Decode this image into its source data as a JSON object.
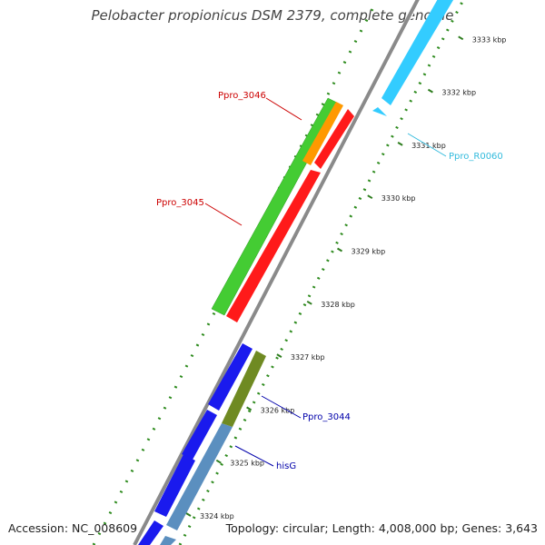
{
  "title": "Pelobacter propionicus DSM 2379, complete genome",
  "footer": {
    "accession": "Accession: NC_008609",
    "summary": "Topology: circular; Length: 4,008,000 bp; Genes: 3,643"
  },
  "colors": {
    "backbone": "#888888",
    "tick": "#2e7d1e",
    "tick_dot": "#1f8a1f",
    "red": "#ff1a1a",
    "green": "#44cc33",
    "orange": "#ff9900",
    "blue": "#1a1aee",
    "steel": "#5b8fbf",
    "olive": "#6f8a22",
    "cyan": "#33ccff",
    "label_red": "#cc0000",
    "label_blue": "#0000aa",
    "label_cyan": "#33bbdd"
  },
  "ticks": [
    {
      "label": "3324 kbp"
    },
    {
      "label": "3325 kbp"
    },
    {
      "label": "3326 kbp"
    },
    {
      "label": "3327 kbp"
    },
    {
      "label": "3328 kbp"
    },
    {
      "label": "3329 kbp"
    },
    {
      "label": "3330 kbp"
    },
    {
      "label": "3331 kbp"
    },
    {
      "label": "3332 kbp"
    },
    {
      "label": "3333 kbp"
    }
  ],
  "gene_labels": {
    "ppro_3046": "Ppro_3046",
    "ppro_3045": "Ppro_3045",
    "ppro_r0060": "Ppro_R0060",
    "ppro_3044": "Ppro_3044",
    "hisG": "hisG"
  }
}
